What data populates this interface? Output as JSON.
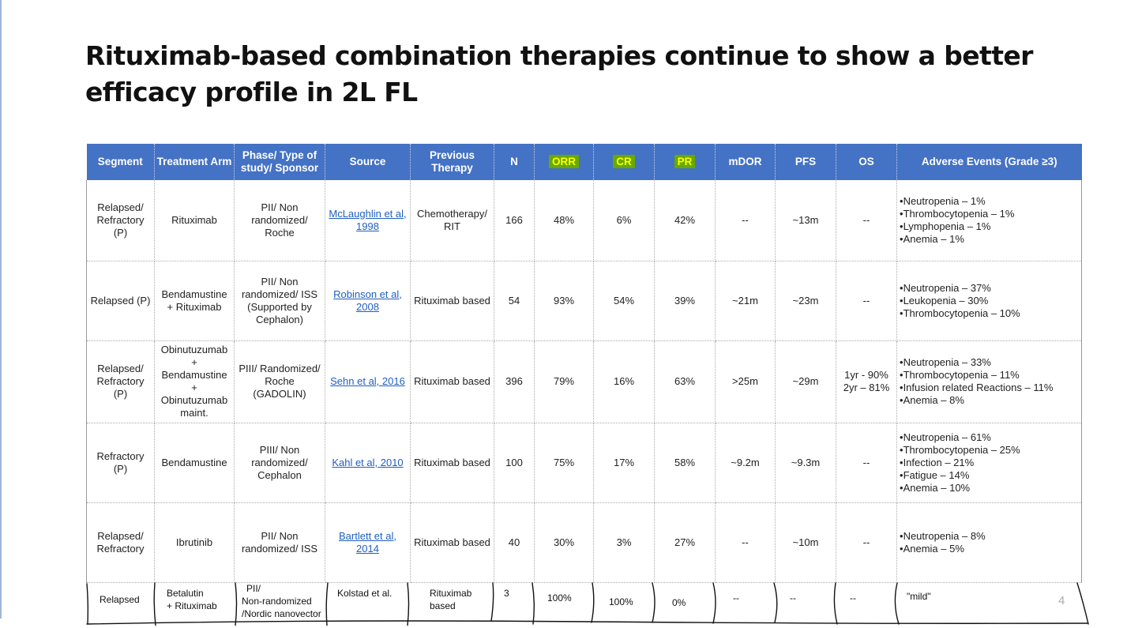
{
  "slide": {
    "title": "Rituximab-based combination therapies continue to show a better efficacy profile in 2L FL",
    "page_number": "4"
  },
  "table": {
    "headers": {
      "segment": "Segment",
      "arm": "Treatment Arm",
      "phase": "Phase/ Type of study/ Sponsor",
      "source": "Source",
      "prev": "Previous Therapy",
      "n": "N",
      "orr": "ORR",
      "cr": "CR",
      "pr": "PR",
      "mdor": "mDOR",
      "pfs": "PFS",
      "os": "OS",
      "ae": "Adverse Events (Grade ≥3)"
    },
    "rows": [
      {
        "segment": "Relapsed/ Refractory (P)",
        "arm": "Rituximab",
        "phase": "PII/ Non randomized/ Roche",
        "source": "McLaughlin et al, 1998",
        "prev": "Chemotherapy/ RIT",
        "n": "166",
        "orr": "48%",
        "cr": "6%",
        "pr": "42%",
        "mdor": "--",
        "pfs": "~13m",
        "os": "--",
        "ae": [
          "Neutropenia – 1%",
          "Thrombocytopenia – 1%",
          "Lymphopenia – 1%",
          "Anemia – 1%"
        ]
      },
      {
        "segment": "Relapsed (P)",
        "arm": "Bendamustine + Rituximab",
        "phase": "PII/ Non randomized/ ISS (Supported by Cephalon)",
        "source": "Robinson et al, 2008",
        "prev": "Rituximab based",
        "n": "54",
        "orr": "93%",
        "cr": "54%",
        "pr": "39%",
        "mdor": "~21m",
        "pfs": "~23m",
        "os": "--",
        "ae": [
          "Neutropenia – 37%",
          "Leukopenia – 30%",
          "Thrombocytopenia – 10%"
        ]
      },
      {
        "segment": "Relapsed/ Refractory (P)",
        "arm": "Obinutuzumab + Bendamustine + Obinutuzumab maint.",
        "phase": "PIII/ Randomized/ Roche (GADOLIN)",
        "source": "Sehn et al, 2016",
        "prev": "Rituximab based",
        "n": "396",
        "orr": "79%",
        "cr": "16%",
        "pr": "63%",
        "mdor": ">25m",
        "pfs": "~29m",
        "os": "1yr - 90% 2yr – 81%",
        "ae": [
          "Neutropenia – 33%",
          "Thrombocytopenia – 11%",
          "Infusion related Reactions – 11%",
          "Anemia – 8%"
        ]
      },
      {
        "segment": "Refractory (P)",
        "arm": "Bendamustine",
        "phase": "PIII/ Non randomized/ Cephalon",
        "source": "Kahl et al, 2010",
        "prev": "Rituximab based",
        "n": "100",
        "orr": "75%",
        "cr": "17%",
        "pr": "58%",
        "mdor": "~9.2m",
        "pfs": "~9.3m",
        "os": "--",
        "ae": [
          "Neutropenia – 61%",
          "Thrombocytopenia – 25%",
          "Infection – 21%",
          "Fatigue – 14%",
          "Anemia – 10%"
        ]
      },
      {
        "segment": "Relapsed/ Refractory",
        "arm": "Ibrutinib",
        "phase": "PII/ Non randomized/ ISS",
        "source": "Bartlett et al, 2014",
        "prev": "Rituximab based",
        "n": "40",
        "orr": "30%",
        "cr": "3%",
        "pr": "27%",
        "mdor": "--",
        "pfs": "~10m",
        "os": "--",
        "ae": [
          "Neutropenia – 8%",
          "Anemia – 5%"
        ]
      }
    ],
    "handwritten_row": {
      "segment": "Relapsed",
      "arm_line1": "Betalutin",
      "arm_line2": "+ Rituximab",
      "phase_line1": "PII/",
      "phase_line2": "Non-randomized",
      "phase_line3": "/Nordic nanovector",
      "source": "Kolstad et al.",
      "prev_line1": "Rituximab",
      "prev_line2": "based",
      "n": "3",
      "orr": "100%",
      "cr": "100%",
      "pr": "0%",
      "mdor": "--",
      "pfs": "--",
      "os": "--",
      "ae": "\"mild\""
    }
  },
  "colors": {
    "header_bg": "#4472c4",
    "highlight_bg": "#66a900",
    "highlight_text": "#ffff00",
    "link": "#1f5fbf"
  }
}
